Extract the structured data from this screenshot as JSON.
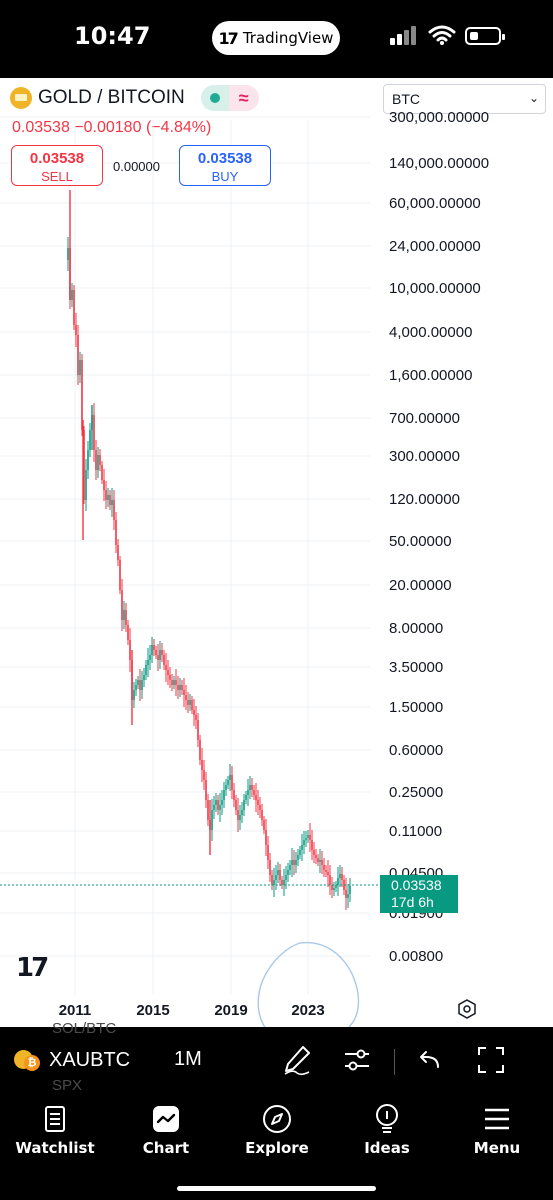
{
  "status": {
    "time": "10:47",
    "app_pill": "TradingView"
  },
  "symbol": {
    "name": "GOLD / BITCOIN",
    "currency": "BTC",
    "last": "0.03538",
    "change": "−0.00180",
    "change_pct": "(−4.84%)",
    "sell_price": "0.03538",
    "sell_label": "SELL",
    "buy_price": "0.03538",
    "buy_label": "BUY",
    "spread": "0.00000"
  },
  "chart_data": {
    "type": "candlestick",
    "scale": "log",
    "y_ticks": [
      "300,000.00000",
      "140,000.00000",
      "60,000.00000",
      "24,000.00000",
      "10,000.00000",
      "4,000.00000",
      "1,600.00000",
      "700.00000",
      "300.00000",
      "120.00000",
      "50.00000",
      "20.00000",
      "8.00000",
      "3.50000",
      "1.50000",
      "0.60000",
      "0.25000",
      "0.11000",
      "0.04500",
      "0.01900",
      "0.00800"
    ],
    "x_ticks": [
      "2011",
      "2015",
      "2019",
      "2023"
    ],
    "last_price_tag": "0.03538",
    "countdown": "17d 6h",
    "up_color": "#089981",
    "down_color": "#f23645",
    "annotation": "circle"
  },
  "toolbar": {
    "ghost_top": "SOL/BTC",
    "ghost_bottom": "SPX",
    "symbol": "XAUBTC",
    "interval": "1M"
  },
  "nav": [
    {
      "label": "Watchlist",
      "icon": "watchlist-icon"
    },
    {
      "label": "Chart",
      "icon": "chart-icon"
    },
    {
      "label": "Explore",
      "icon": "compass-icon"
    },
    {
      "label": "Ideas",
      "icon": "lightbulb-icon"
    },
    {
      "label": "Menu",
      "icon": "menu-icon"
    }
  ]
}
